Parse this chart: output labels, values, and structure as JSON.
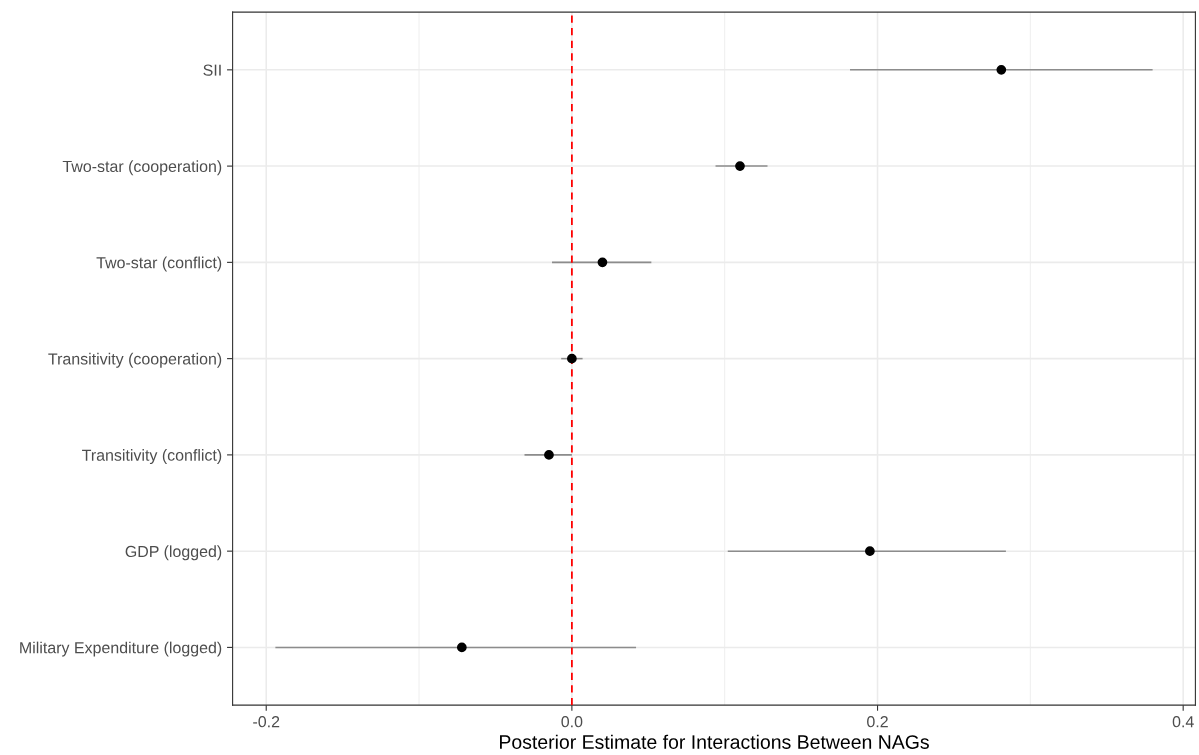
{
  "chart_data": {
    "type": "scatter",
    "orientation": "horizontal",
    "xlabel": "Posterior Estimate for Interactions Between NAGs",
    "categories": [
      "SII",
      "Two-star (cooperation)",
      "Two-star (conflict)",
      "Transitivity (cooperation)",
      "Transitivity (conflict)",
      "GDP (logged)",
      "Military Expenditure (logged)"
    ],
    "series": [
      {
        "color": "#000000",
        "values": [
          0.281,
          0.11,
          0.02,
          0.0,
          -0.015,
          0.195,
          -0.072
        ],
        "errors": [
          [
            0.182,
            0.38
          ],
          [
            0.094,
            0.128
          ],
          [
            -0.013,
            0.052
          ],
          [
            -0.007,
            0.007
          ],
          [
            -0.031,
            0.0
          ],
          [
            0.102,
            0.284
          ],
          [
            -0.194,
            0.042
          ]
        ]
      }
    ],
    "xlim": [
      -0.222,
      0.408
    ],
    "xticks": [
      {
        "value": -0.2,
        "label": "-0.2"
      },
      {
        "value": -0.1,
        "label": null
      },
      {
        "value": 0.0,
        "label": "0.0"
      },
      {
        "value": 0.1,
        "label": null
      },
      0.2,
      {
        "value": 0.3,
        "label": null
      },
      0.4
    ],
    "ref_lines": [
      {
        "axis": "x",
        "value": 0,
        "color": "#ff0000",
        "line_style": "dashed"
      }
    ],
    "grid": true,
    "marker": "circle"
  }
}
